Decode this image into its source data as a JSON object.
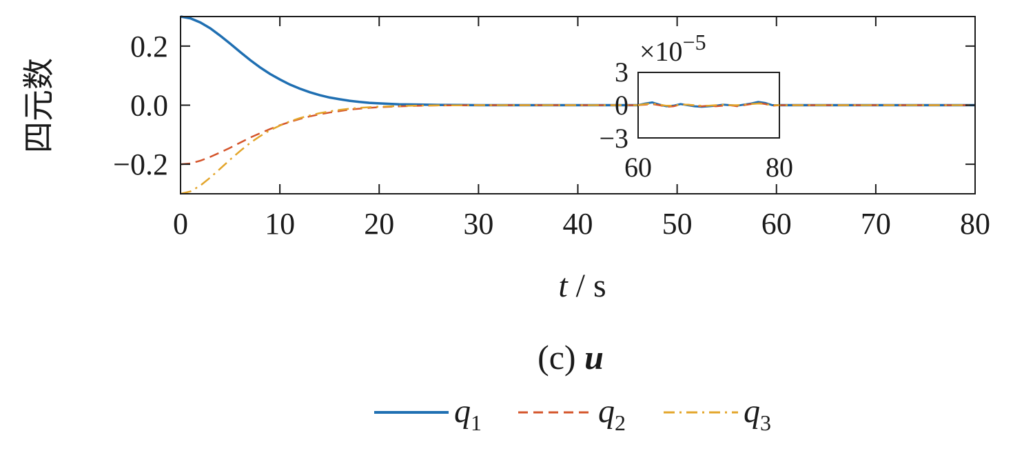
{
  "chart_data": {
    "type": "line",
    "title": "",
    "caption": {
      "prefix": "(c)",
      "symbol": "u"
    },
    "xlabel": {
      "var": "t",
      "unit": "/ s"
    },
    "ylabel": "四元数",
    "xlim": [
      0,
      80
    ],
    "ylim": [
      -0.3,
      0.3
    ],
    "x_ticks": [
      0,
      10,
      20,
      30,
      40,
      50,
      60,
      70,
      80
    ],
    "x_tick_labels": [
      "0",
      "10",
      "20",
      "30",
      "40",
      "50",
      "60",
      "70",
      "80"
    ],
    "y_ticks": [
      0.2,
      0.0,
      -0.2
    ],
    "y_tick_labels": [
      "0.2",
      "0.0",
      "−0.2"
    ],
    "grid": false,
    "legend_placement": "bottom-center",
    "series": [
      {
        "name": "q1",
        "label_base": "q",
        "label_sub": "1",
        "color": "#1f6fb2",
        "dash": "solid",
        "x": [
          0,
          1,
          2,
          3,
          4,
          5,
          6,
          7,
          8,
          9,
          10,
          11,
          12,
          13,
          14,
          15,
          16,
          17,
          18,
          19,
          20,
          22,
          24,
          26,
          28,
          30,
          35,
          40,
          45,
          50,
          55,
          60,
          65,
          70,
          75,
          80
        ],
        "y": [
          0.3,
          0.294,
          0.28,
          0.26,
          0.235,
          0.208,
          0.18,
          0.153,
          0.128,
          0.106,
          0.087,
          0.07,
          0.056,
          0.044,
          0.034,
          0.026,
          0.02,
          0.015,
          0.011,
          0.008,
          0.006,
          0.003,
          0.002,
          0.001,
          0.0005,
          0.0,
          0.0,
          0.0,
          0.0,
          0.0,
          0.0,
          0.0,
          0.0,
          0.0,
          0.0,
          0.0
        ]
      },
      {
        "name": "q2",
        "label_base": "q",
        "label_sub": "2",
        "color": "#d4542a",
        "dash": "dashed",
        "x": [
          0,
          1,
          2,
          3,
          4,
          5,
          6,
          7,
          8,
          9,
          10,
          11,
          12,
          13,
          14,
          15,
          16,
          17,
          18,
          19,
          20,
          22,
          24,
          26,
          28,
          30,
          35,
          40,
          45,
          50,
          55,
          60,
          65,
          70,
          75,
          80
        ],
        "y": [
          -0.2,
          -0.197,
          -0.188,
          -0.175,
          -0.16,
          -0.144,
          -0.127,
          -0.11,
          -0.095,
          -0.081,
          -0.068,
          -0.057,
          -0.047,
          -0.038,
          -0.031,
          -0.025,
          -0.02,
          -0.015,
          -0.012,
          -0.009,
          -0.007,
          -0.004,
          -0.002,
          -0.001,
          -0.0005,
          0.0,
          0.0,
          0.0,
          0.0,
          0.0,
          0.0,
          0.0,
          0.0,
          0.0,
          0.0,
          0.0
        ]
      },
      {
        "name": "q3",
        "label_base": "q",
        "label_sub": "3",
        "color": "#e3a52a",
        "dash": "dashdot",
        "x": [
          0,
          1,
          2,
          3,
          4,
          5,
          6,
          7,
          8,
          9,
          10,
          11,
          12,
          13,
          14,
          15,
          16,
          17,
          18,
          19,
          20,
          22,
          24,
          26,
          28,
          30,
          35,
          40,
          45,
          50,
          55,
          60,
          65,
          70,
          75,
          80
        ],
        "y": [
          -0.3,
          -0.292,
          -0.272,
          -0.245,
          -0.215,
          -0.184,
          -0.155,
          -0.128,
          -0.105,
          -0.085,
          -0.069,
          -0.055,
          -0.044,
          -0.035,
          -0.027,
          -0.021,
          -0.016,
          -0.012,
          -0.009,
          -0.007,
          -0.005,
          -0.003,
          -0.0015,
          -0.0008,
          -0.0004,
          0.0,
          0.0,
          0.0,
          0.0,
          0.0,
          0.0,
          0.0,
          0.0,
          0.0,
          0.0,
          0.0
        ]
      }
    ],
    "inset": {
      "scale_prefix": "×10",
      "scale_exponent": "−5",
      "xlim": [
        60,
        80
      ],
      "ylim": [
        -3,
        3
      ],
      "x_tick_labels": [
        "60",
        "80"
      ],
      "y_tick_labels": [
        "3",
        "0",
        "−3"
      ],
      "series": [
        {
          "name": "q1",
          "x": [
            60,
            61,
            62,
            63,
            64,
            65,
            66,
            67,
            68,
            69,
            70,
            71,
            72,
            73,
            74,
            75,
            76,
            77,
            78,
            79,
            80
          ],
          "y": [
            0.0,
            0.15,
            0.25,
            0.05,
            -0.1,
            -0.05,
            0.1,
            0.0,
            -0.1,
            -0.15,
            -0.1,
            -0.05,
            0.05,
            0.0,
            -0.05,
            0.05,
            0.15,
            0.3,
            0.2,
            0.0,
            0.0
          ]
        },
        {
          "name": "q2",
          "x": [
            60,
            61,
            62,
            63,
            64,
            65,
            66,
            67,
            68,
            69,
            70,
            71,
            72,
            73,
            74,
            75,
            76,
            77,
            78,
            79,
            80
          ],
          "y": [
            0.0,
            0.05,
            0.1,
            0.0,
            -0.15,
            -0.1,
            0.05,
            0.05,
            -0.05,
            -0.1,
            -0.05,
            -0.1,
            -0.05,
            0.0,
            -0.1,
            0.0,
            0.1,
            0.2,
            0.1,
            -0.05,
            0.0
          ]
        },
        {
          "name": "q3",
          "x": [
            60,
            61,
            62,
            63,
            64,
            65,
            66,
            67,
            68,
            69,
            70,
            71,
            72,
            73,
            74,
            75,
            76,
            77,
            78,
            79,
            80
          ],
          "y": [
            0.0,
            0.1,
            0.15,
            0.05,
            -0.05,
            -0.05,
            0.05,
            0.05,
            0.0,
            -0.05,
            -0.05,
            0.0,
            0.05,
            0.0,
            0.0,
            0.05,
            0.1,
            0.15,
            0.1,
            0.0,
            0.0
          ]
        }
      ]
    }
  }
}
